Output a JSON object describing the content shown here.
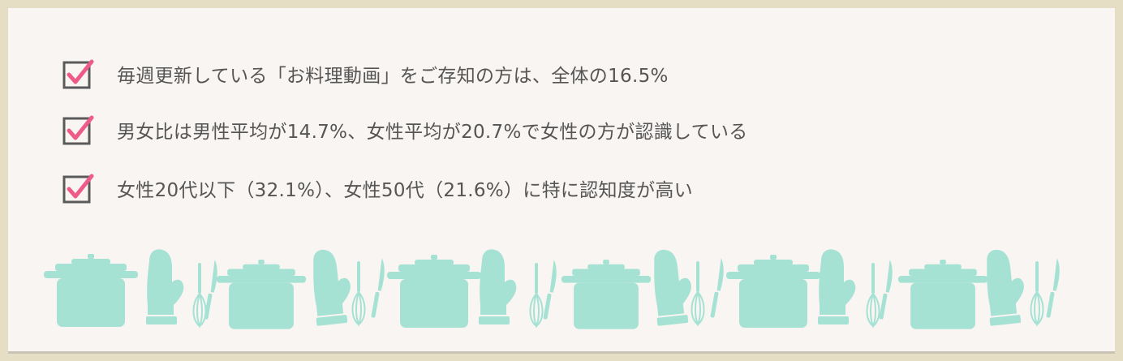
{
  "checklist": {
    "items": [
      {
        "text": "毎週更新している「お料理動画」をご存知の方は、全体の16.5%",
        "checked": true
      },
      {
        "text": "男女比は男性平均が14.7%、女性平均が20.7%で女性の方が認識している",
        "checked": true
      },
      {
        "text": "女性20代以下（32.1%）、女性50代（21.6%）に特に認知度が高い",
        "checked": true
      }
    ]
  },
  "colors": {
    "frame": "#e6dec4",
    "card": "#f8f5f2",
    "checkbox_border": "#5a5a5a",
    "checkmark": "#ee5a8a",
    "text": "#555555",
    "kitchen_icons": "#a6e2d4"
  },
  "decoration": {
    "icons": [
      "cooking-pot-icon",
      "oven-mitt-icon",
      "knife-icon",
      "whisk-icon"
    ]
  }
}
